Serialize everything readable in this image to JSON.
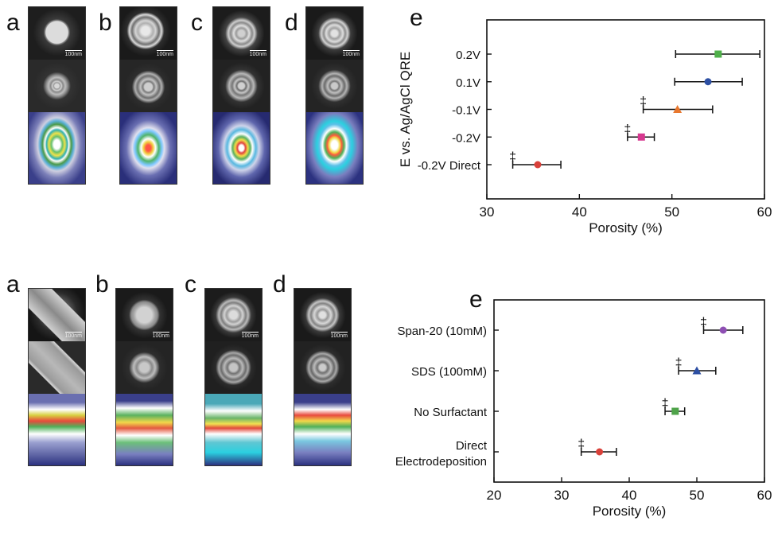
{
  "top_panel": {
    "letters": [
      "a",
      "b",
      "c",
      "d"
    ],
    "scale_text": "100nm",
    "chart_label": "e"
  },
  "bottom_panel": {
    "letters": [
      "a",
      "b",
      "c",
      "d"
    ],
    "scale_text": "100nm",
    "chart_label": "e"
  },
  "marker_symbol": "‡",
  "chart_data": [
    {
      "type": "scatter",
      "xlabel": "Porosity (%)",
      "ylabel": "E vs. Ag/AgCl QRE",
      "xlim": [
        30,
        60
      ],
      "xticks": [
        30,
        40,
        50,
        60
      ],
      "categories": [
        "-0.2V Direct",
        "-0.2V",
        "-0.1V",
        "0.1V",
        "0.2V"
      ],
      "points": [
        {
          "category": "-0.2V Direct",
          "x": 35.5,
          "xerr_low": 32.8,
          "xerr_high": 38.0,
          "marker": "circle",
          "color": "#d9413a",
          "dagger": true
        },
        {
          "category": "-0.2V",
          "x": 46.7,
          "xerr_low": 45.2,
          "xerr_high": 48.1,
          "marker": "square",
          "color": "#d6388f",
          "dagger": true
        },
        {
          "category": "-0.1V",
          "x": 50.6,
          "xerr_low": 46.9,
          "xerr_high": 54.4,
          "marker": "triangle",
          "color": "#e8772e",
          "dagger": true
        },
        {
          "category": "0.1V",
          "x": 53.9,
          "xerr_low": 50.3,
          "xerr_high": 57.6,
          "marker": "circle",
          "color": "#2d4fa3",
          "dagger": false
        },
        {
          "category": "0.2V",
          "x": 55.0,
          "xerr_low": 50.4,
          "xerr_high": 59.5,
          "marker": "square",
          "color": "#4fb04a",
          "dagger": false
        }
      ],
      "grid": false
    },
    {
      "type": "scatter",
      "xlabel": "Porosity (%)",
      "ylabel": "",
      "xlim": [
        20,
        60
      ],
      "xticks": [
        20,
        30,
        40,
        50,
        60
      ],
      "categories": [
        "Direct Electrodeposition",
        "No Surfactant",
        "SDS (100mM)",
        "Span-20 (10mM)"
      ],
      "category_lines": [
        [
          "Direct",
          "Electrodeposition"
        ],
        [
          "No Surfactant"
        ],
        [
          "SDS (100mM)"
        ],
        [
          "Span-20 (10mM)"
        ]
      ],
      "points": [
        {
          "category": "Direct Electrodeposition",
          "x": 35.6,
          "xerr_low": 32.9,
          "xerr_high": 38.1,
          "marker": "circle",
          "color": "#d9413a",
          "dagger": true
        },
        {
          "category": "No Surfactant",
          "x": 46.8,
          "xerr_low": 45.3,
          "xerr_high": 48.2,
          "marker": "square",
          "color": "#4fa34a",
          "dagger": true
        },
        {
          "category": "SDS (100mM)",
          "x": 50.0,
          "xerr_low": 47.3,
          "xerr_high": 52.8,
          "marker": "triangle",
          "color": "#2d4fa3",
          "dagger": true
        },
        {
          "category": "Span-20 (10mM)",
          "x": 53.9,
          "xerr_low": 51.0,
          "xerr_high": 56.8,
          "marker": "circle",
          "color": "#8e4fb3",
          "dagger": true
        }
      ],
      "grid": false
    }
  ]
}
